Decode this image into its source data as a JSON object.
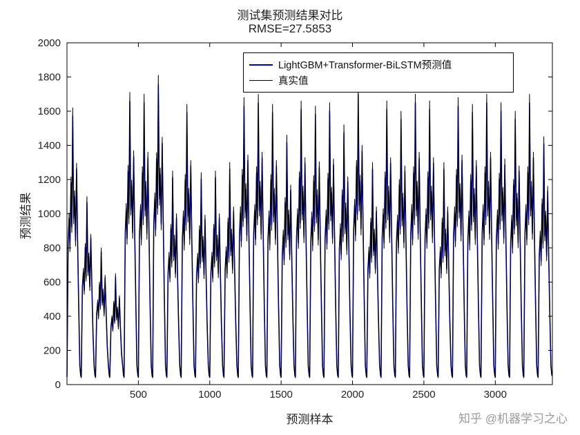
{
  "figure": {
    "title": "测试集预测结果对比",
    "subtitle": "RMSE=27.5853",
    "watermark": "知乎 @机器学习之心"
  },
  "chart_data": {
    "type": "line",
    "title": "测试集预测结果对比",
    "subtitle": "RMSE=27.5853",
    "xlabel": "预测样本",
    "ylabel": "预测结果",
    "xlim": [
      0,
      3400
    ],
    "ylim": [
      0,
      2000
    ],
    "x_ticks": [
      500,
      1000,
      1500,
      2000,
      2500,
      3000
    ],
    "y_ticks": [
      0,
      200,
      400,
      600,
      800,
      1000,
      1200,
      1400,
      1600,
      1800,
      2000
    ],
    "grid": false,
    "legend": {
      "position": "top-center-inside",
      "entries": [
        {
          "label": "LightGBM+Transformer-BiLSTM预测值",
          "color": "#0000cc"
        },
        {
          "label": "真实值",
          "color": "#000000"
        }
      ]
    },
    "cycle_period": 100,
    "cycle_peaks": [
      1620,
      1100,
      800,
      650,
      1710,
      1700,
      1810,
      1250,
      1640,
      1240,
      1250,
      1300,
      1680,
      1700,
      1640,
      1460,
      1660,
      1630,
      1650,
      1520,
      1750,
      1300,
      1660,
      1600,
      1700,
      1660,
      1300,
      1680,
      1640,
      1700,
      1650,
      1600,
      1700,
      1450
    ],
    "waveform_dx": [
      0,
      8,
      15,
      21,
      28,
      34,
      40,
      47,
      53,
      60,
      67,
      74,
      82,
      90,
      96
    ],
    "series": [
      {
        "name": "LightGBM+Transformer-BiLSTM预测值",
        "color": "#0000cc",
        "width": 1.6,
        "shape": [
          -45,
          0.52,
          0.6,
          0.5,
          0.73,
          0.57,
          0.97,
          0.6,
          0.68,
          0.52,
          0.78,
          0.53,
          0.28,
          -110,
          -55
        ]
      },
      {
        "name": "真实值",
        "color": "#000000",
        "width": 1.0,
        "shape": [
          -40,
          0.5,
          0.62,
          0.48,
          0.75,
          0.55,
          1.0,
          0.58,
          0.7,
          0.5,
          0.8,
          0.55,
          0.3,
          -120,
          -50
        ]
      }
    ]
  }
}
